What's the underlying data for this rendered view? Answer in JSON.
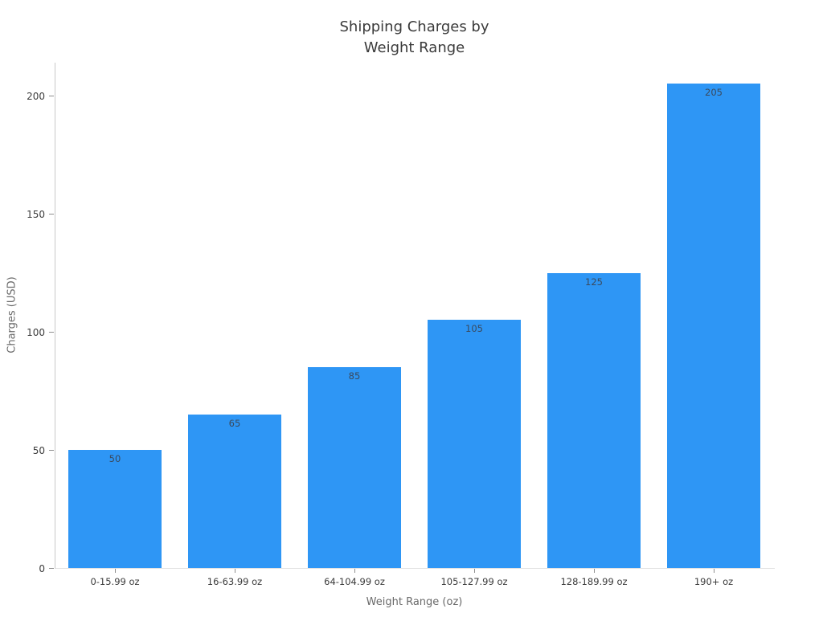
{
  "chart_data": {
    "type": "bar",
    "title": "Shipping Charges by\nWeight Range",
    "categories": [
      "0-15.99 oz",
      "16-63.99 oz",
      "64-104.99 oz",
      "105-127.99 oz",
      "128-189.99 oz",
      "190+ oz"
    ],
    "values": [
      50,
      65,
      85,
      105,
      125,
      205
    ],
    "bar_labels": [
      "50",
      "65",
      "85",
      "105",
      "125",
      "205"
    ],
    "xlabel": "Weight Range (oz)",
    "ylabel": "Charges (USD)",
    "yticks": [
      0,
      50,
      100,
      150,
      200
    ],
    "ylim": [
      0,
      214
    ],
    "grid": false,
    "legend": "none",
    "bar_color": "#2e96f5",
    "value_label_color": "#3a4a5e",
    "tick_label_color": "#3b3b3b",
    "axis_title_color": "#6a6a6a",
    "title_color": "#3b3b3b"
  }
}
